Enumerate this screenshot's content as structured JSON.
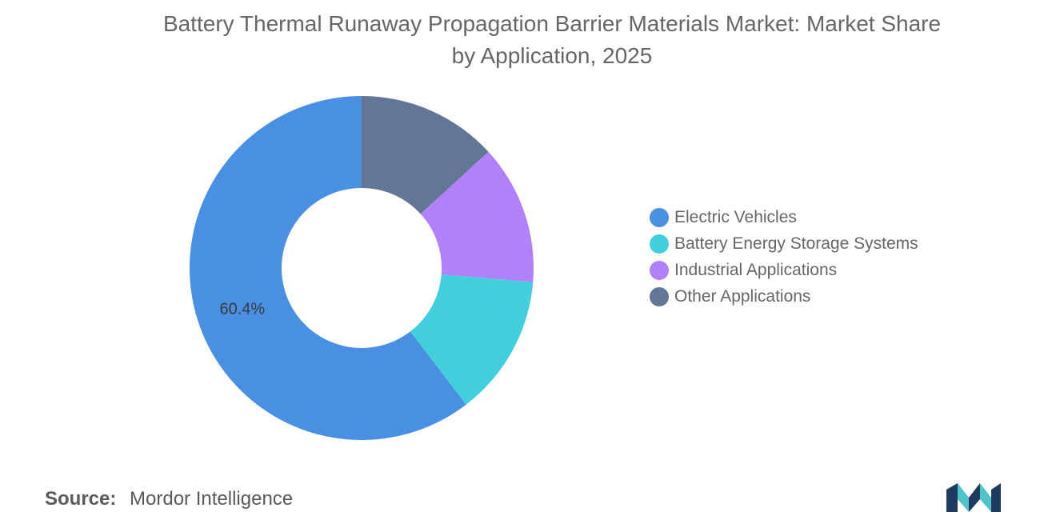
{
  "chart_data": {
    "type": "pie",
    "title": "Battery Thermal Runaway Propagation Barrier Materials Market: Market Share by Application, 2025",
    "title_lines": [
      "Battery Thermal Runaway Propagation Barrier Materials Market: Market Share",
      "by Application, 2025"
    ],
    "donut": true,
    "start_angle_deg": 0,
    "legend_position": "right",
    "slices": [
      {
        "label": "Electric Vehicles",
        "value": 60.4,
        "color": "#4a90e2",
        "show_label": true,
        "label_text": "60.4%"
      },
      {
        "label": "Battery Energy Storage Systems",
        "value": 13.3,
        "color": "#41cfdb"
      },
      {
        "label": "Industrial Applications",
        "value": 13.1,
        "color": "#b180fb"
      },
      {
        "label": "Other Applications",
        "value": 13.2,
        "color": "#647696"
      }
    ],
    "slice_draw_order_clockwise": [
      3,
      2,
      1,
      0
    ]
  },
  "source": {
    "label": "Source:",
    "text": "Mordor Intelligence"
  },
  "logo": {
    "name": "Mordor Intelligence logo",
    "colors": [
      "#1f3a5f",
      "#4fc3c8"
    ]
  }
}
